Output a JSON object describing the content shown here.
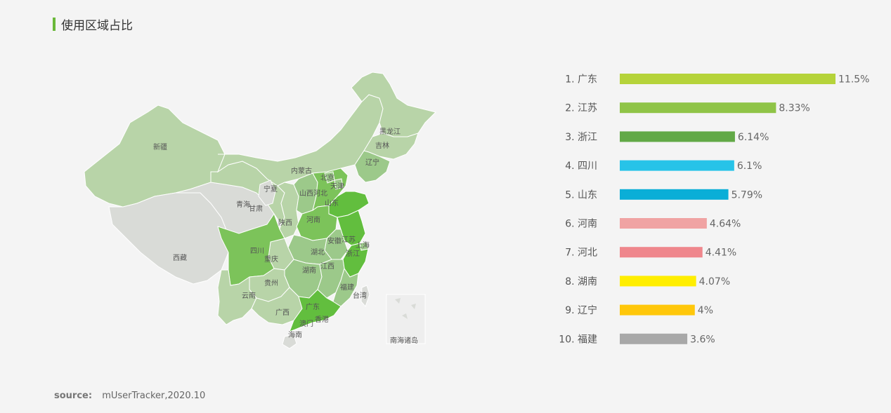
{
  "title": "使用区域占比",
  "source": {
    "label": "source:",
    "text": "mUserTracker,2020.10"
  },
  "map": {
    "labels": {
      "xinjiang": "新疆",
      "xizang": "西藏",
      "qinghai": "青海",
      "gansu": "甘肃",
      "ningxia": "宁夏",
      "neimenggu": "内蒙古",
      "heilongjiang": "黑龙江",
      "jilin": "吉林",
      "liaoning": "辽宁",
      "beijing": "北京",
      "tianjin": "天津",
      "hebei": "河北",
      "shanxi": "山西",
      "shandong": "山东",
      "henan": "河南",
      "shaanxi": "陕西",
      "sichuan": "四川",
      "chongqing": "重庆",
      "hubei": "湖北",
      "anhui": "安徽",
      "jiangsu": "江苏",
      "shanghai": "上海",
      "zhejiang": "浙江",
      "hunan": "湖南",
      "jiangxi": "江西",
      "fujian": "福建",
      "taiwan": "台湾",
      "guizhou": "贵州",
      "yunnan": "云南",
      "guangxi": "广西",
      "guangdong": "广东",
      "aomen": "澳门",
      "xianggang": "香港",
      "hainan": "海南",
      "nanhai": "南海诸岛"
    },
    "colors": {
      "light_gray": "#d9dbd7",
      "light_green": "#b8d4a8",
      "mid_green": "#9cc98a",
      "strong_green": "#7cc35a",
      "top_green": "#62be3e",
      "nanhai_box": "#eeeeee"
    }
  },
  "chart_data": {
    "type": "bar",
    "orientation": "horizontal",
    "title": "",
    "categories": [
      "广东",
      "江苏",
      "浙江",
      "四川",
      "山东",
      "河南",
      "河北",
      "湖南",
      "辽宁",
      "福建"
    ],
    "ranks": [
      "1.",
      "2.",
      "3.",
      "4.",
      "5.",
      "6.",
      "7.",
      "8.",
      "9.",
      "10."
    ],
    "values": [
      11.5,
      8.33,
      6.14,
      6.1,
      5.79,
      4.64,
      4.41,
      4.07,
      4,
      3.6
    ],
    "value_labels": [
      "11.5%",
      "8.33%",
      "6.14%",
      "6.1%",
      "5.79%",
      "4.64%",
      "4.41%",
      "4.07%",
      "4%",
      "3.6%"
    ],
    "colors": [
      "#b5d33a",
      "#8fc447",
      "#62a947",
      "#27c3e8",
      "#0aaed7",
      "#f0a3a3",
      "#ef868c",
      "#ffee00",
      "#ffc70a",
      "#a8a8a8"
    ],
    "xlim": [
      0,
      11.5
    ],
    "grid": false,
    "legend": "none"
  }
}
